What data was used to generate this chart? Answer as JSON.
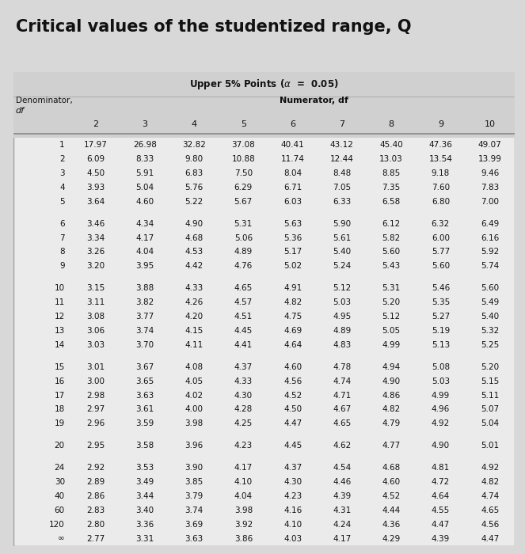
{
  "title": "Critical values of the studentized range, Q",
  "subtitle": "Upper 5% Points (α = 0.05)",
  "col_header": [
    "2",
    "3",
    "4",
    "5",
    "6",
    "7",
    "8",
    "9",
    "10"
  ],
  "row_labels": [
    "1",
    "2",
    "3",
    "4",
    "5",
    "6",
    "7",
    "8",
    "9",
    "10",
    "11",
    "12",
    "13",
    "14",
    "15",
    "16",
    "17",
    "18",
    "19",
    "20",
    "24",
    "30",
    "40",
    "60",
    "120",
    "∞"
  ],
  "table_data": [
    [
      17.97,
      26.98,
      32.82,
      37.08,
      40.41,
      43.12,
      45.4,
      47.36,
      49.07
    ],
    [
      6.09,
      8.33,
      9.8,
      10.88,
      11.74,
      12.44,
      13.03,
      13.54,
      13.99
    ],
    [
      4.5,
      5.91,
      6.83,
      7.5,
      8.04,
      8.48,
      8.85,
      9.18,
      9.46
    ],
    [
      3.93,
      5.04,
      5.76,
      6.29,
      6.71,
      7.05,
      7.35,
      7.6,
      7.83
    ],
    [
      3.64,
      4.6,
      5.22,
      5.67,
      6.03,
      6.33,
      6.58,
      6.8,
      7.0
    ],
    [
      3.46,
      4.34,
      4.9,
      5.31,
      5.63,
      5.9,
      6.12,
      6.32,
      6.49
    ],
    [
      3.34,
      4.17,
      4.68,
      5.06,
      5.36,
      5.61,
      5.82,
      6.0,
      6.16
    ],
    [
      3.26,
      4.04,
      4.53,
      4.89,
      5.17,
      5.4,
      5.6,
      5.77,
      5.92
    ],
    [
      3.2,
      3.95,
      4.42,
      4.76,
      5.02,
      5.24,
      5.43,
      5.6,
      5.74
    ],
    [
      3.15,
      3.88,
      4.33,
      4.65,
      4.91,
      5.12,
      5.31,
      5.46,
      5.6
    ],
    [
      3.11,
      3.82,
      4.26,
      4.57,
      4.82,
      5.03,
      5.2,
      5.35,
      5.49
    ],
    [
      3.08,
      3.77,
      4.2,
      4.51,
      4.75,
      4.95,
      5.12,
      5.27,
      5.4
    ],
    [
      3.06,
      3.74,
      4.15,
      4.45,
      4.69,
      4.89,
      5.05,
      5.19,
      5.32
    ],
    [
      3.03,
      3.7,
      4.11,
      4.41,
      4.64,
      4.83,
      4.99,
      5.13,
      5.25
    ],
    [
      3.01,
      3.67,
      4.08,
      4.37,
      4.6,
      4.78,
      4.94,
      5.08,
      5.2
    ],
    [
      3.0,
      3.65,
      4.05,
      4.33,
      4.56,
      4.74,
      4.9,
      5.03,
      5.15
    ],
    [
      2.98,
      3.63,
      4.02,
      4.3,
      4.52,
      4.71,
      4.86,
      4.99,
      5.11
    ],
    [
      2.97,
      3.61,
      4.0,
      4.28,
      4.5,
      4.67,
      4.82,
      4.96,
      5.07
    ],
    [
      2.96,
      3.59,
      3.98,
      4.25,
      4.47,
      4.65,
      4.79,
      4.92,
      5.04
    ],
    [
      2.95,
      3.58,
      3.96,
      4.23,
      4.45,
      4.62,
      4.77,
      4.9,
      5.01
    ],
    [
      2.92,
      3.53,
      3.9,
      4.17,
      4.37,
      4.54,
      4.68,
      4.81,
      4.92
    ],
    [
      2.89,
      3.49,
      3.85,
      4.1,
      4.3,
      4.46,
      4.6,
      4.72,
      4.82
    ],
    [
      2.86,
      3.44,
      3.79,
      4.04,
      4.23,
      4.39,
      4.52,
      4.64,
      4.74
    ],
    [
      2.83,
      3.4,
      3.74,
      3.98,
      4.16,
      4.31,
      4.44,
      4.55,
      4.65
    ],
    [
      2.8,
      3.36,
      3.69,
      3.92,
      4.1,
      4.24,
      4.36,
      4.47,
      4.56
    ],
    [
      2.77,
      3.31,
      3.63,
      3.86,
      4.03,
      4.17,
      4.29,
      4.39,
      4.47
    ]
  ],
  "page_bg": "#d8d8d8",
  "table_bg": "#ebebeb",
  "header_bg": "#d0d0d0",
  "title_color": "#111111",
  "text_color": "#111111",
  "title_fontsize": 15,
  "header_fontsize": 8,
  "data_fontsize": 7.5
}
